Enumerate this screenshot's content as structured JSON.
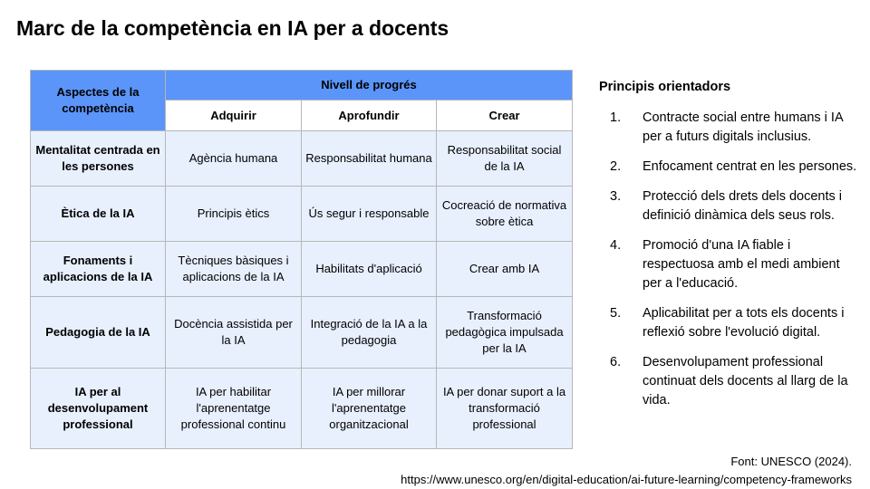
{
  "title": "Marc de la competència en IA per a docents",
  "table": {
    "aspect_header": "Aspectes de la competència",
    "progress_header": "Nivell de progrés",
    "levels": [
      "Adquirir",
      "Aprofundir",
      "Crear"
    ],
    "rows": [
      {
        "aspect": "Mentalitat centrada en les persones",
        "cells": [
          "Agència humana",
          "Responsabilitat humana",
          "Responsabilitat social de la IA"
        ]
      },
      {
        "aspect": "Ètica de la IA",
        "cells": [
          "Principis ètics",
          "Ús segur i responsable",
          "Cocreació de normativa sobre ètica"
        ]
      },
      {
        "aspect": "Fonaments i aplicacions de la IA",
        "cells": [
          "Tècniques bàsiques i aplicacions de la IA",
          "Habilitats d'aplicació",
          "Crear amb IA"
        ]
      },
      {
        "aspect": "Pedagogia de la IA",
        "cells": [
          "Docència assistida per la IA",
          "Integració de la IA a la pedagogia",
          "Transformació pedagògica impulsada per la IA"
        ]
      },
      {
        "aspect": "IA per al desenvolupament professional",
        "cells": [
          "IA per habilitar l'aprenentatge professional continu",
          "IA per millorar l'aprenentatge organitzacional",
          "IA per donar suport a la transformació professional"
        ]
      }
    ]
  },
  "principles": {
    "heading": "Principis orientadors",
    "items": [
      {
        "n": "1.",
        "text": "Contracte social entre humans i IA per a futurs digitals inclusius."
      },
      {
        "n": "2.",
        "text": "Enfocament centrat en les persones."
      },
      {
        "n": "3.",
        "text": "Protecció dels drets dels docents i definició dinàmica dels seus rols."
      },
      {
        "n": "4.",
        "text": "Promoció d'una IA fiable i respectuosa amb el medi ambient per a l'educació."
      },
      {
        "n": "5.",
        "text": "Aplicabilitat per a tots els docents i reflexió sobre l'evolució digital."
      },
      {
        "n": "6.",
        "text": "Desenvolupament professional continuat dels docents al llarg de la vida."
      }
    ]
  },
  "source": {
    "line1": "Font: UNESCO (2024).",
    "line2": "https://www.unesco.org/en/digital-education/ai-future-learning/competency-frameworks"
  },
  "colors": {
    "header": "#5b95f9",
    "row": "#e8f0fe"
  }
}
